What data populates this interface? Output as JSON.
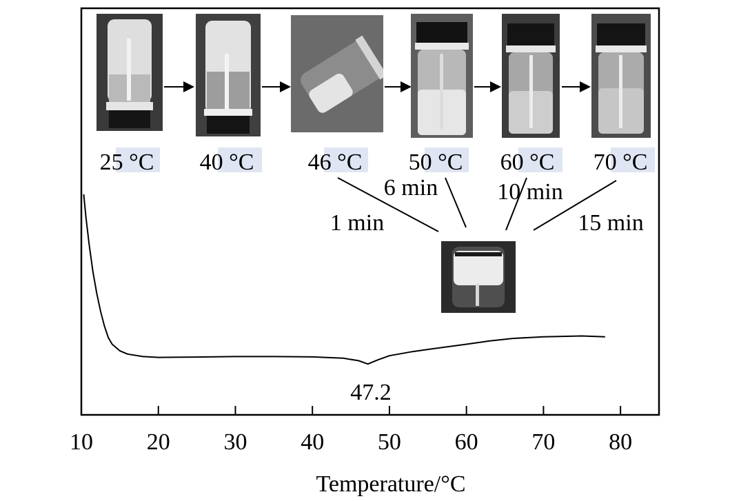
{
  "chart_data": {
    "type": "line",
    "xlabel": "Temperature/°C",
    "ylabel": "",
    "xlim": [
      10,
      85
    ],
    "x_ticks": [
      10,
      20,
      30,
      40,
      50,
      60,
      70,
      80
    ],
    "y_ticks_shown": false,
    "grid": false,
    "legend": "none",
    "series": [
      {
        "x": [
          10.3,
          10.6,
          11.0,
          11.5,
          12.0,
          12.5,
          13.0,
          13.5,
          14.0,
          15.0,
          16.0,
          18.0,
          20.0,
          25.0,
          30.0,
          35.0,
          40.0,
          44.0,
          46.0,
          47.2,
          48.5,
          50.0,
          53.0,
          56.0,
          60.0,
          63.0,
          66.0,
          70.0,
          75.0,
          78.0
        ],
        "y": [
          1.0,
          0.86,
          0.7,
          0.53,
          0.4,
          0.29,
          0.2,
          0.13,
          0.09,
          0.05,
          0.03,
          0.015,
          0.01,
          0.012,
          0.015,
          0.015,
          0.013,
          0.005,
          -0.01,
          -0.03,
          -0.005,
          0.02,
          0.045,
          0.065,
          0.09,
          0.11,
          0.125,
          0.135,
          0.14,
          0.135
        ]
      }
    ],
    "annotations": [
      {
        "text": "47.2",
        "x": 47.2
      }
    ]
  },
  "vials": [
    {
      "label": "25 °C"
    },
    {
      "label": "40 °C"
    },
    {
      "label": "46 °C"
    },
    {
      "label": "50 °C"
    },
    {
      "label": "60 °C"
    },
    {
      "label": "70 °C"
    }
  ],
  "times": {
    "t1": "1 min",
    "t2": "6 min",
    "t3": "10 min",
    "t4": "15 min"
  }
}
